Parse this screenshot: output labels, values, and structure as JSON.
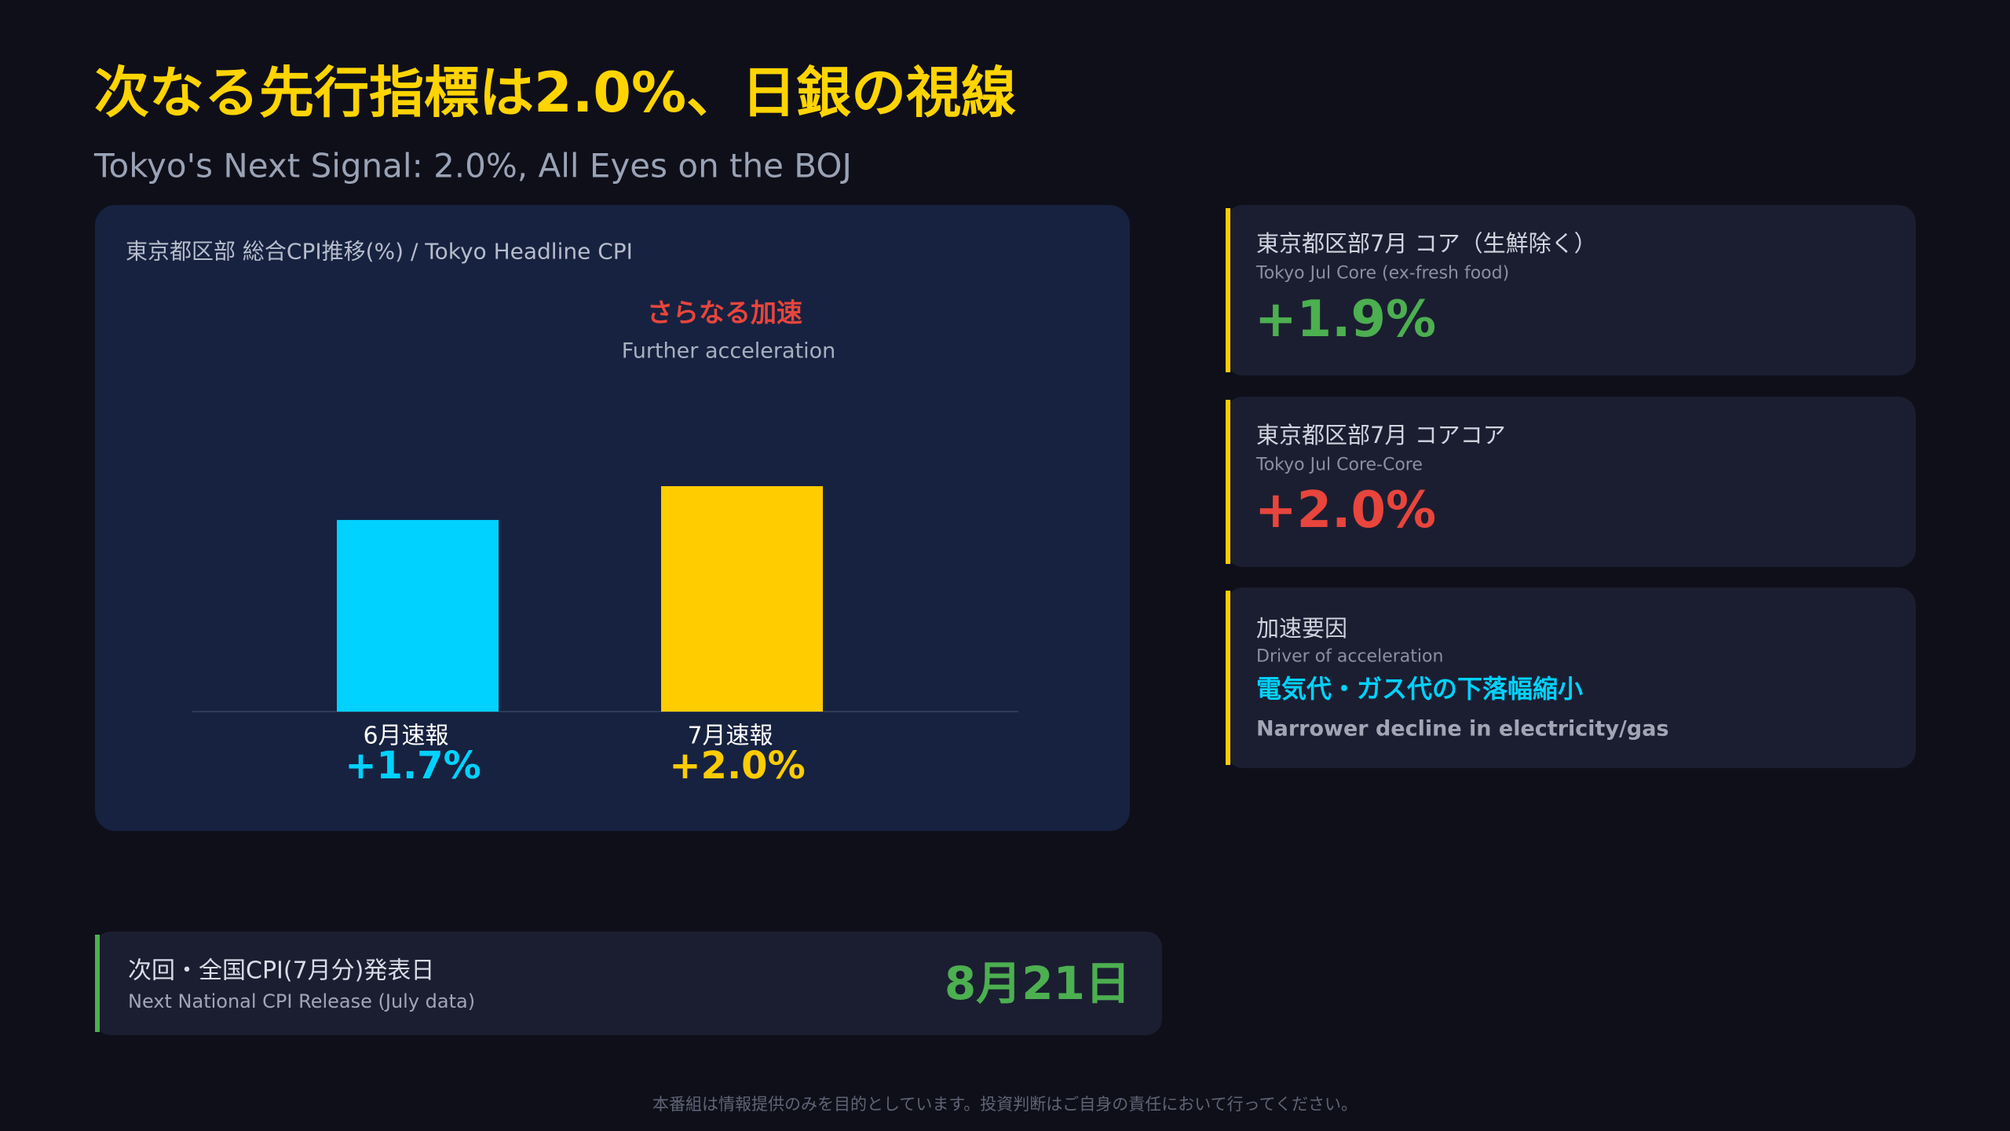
{
  "header": {
    "title": "次なる先行指標は2.0%、日銀の視線",
    "subtitle": "Tokyo's Next Signal: 2.0%, All Eyes on the BOJ"
  },
  "chart_data": {
    "type": "bar",
    "title": "東京都区部 総合CPI推移(%) / Tokyo Headline CPI",
    "annotation": {
      "text": "さらなる加速",
      "subtext": "Further acceleration"
    },
    "categories": [
      "6月速報",
      "7月速報"
    ],
    "values": [
      1.7,
      2.0
    ],
    "value_labels": [
      "+1.7%",
      "+2.0%"
    ],
    "colors": [
      "#00d2ff",
      "#ffcc00"
    ]
  },
  "cards": [
    {
      "label": "東京都区部7月 コア（生鮮除く）",
      "sublabel": "Tokyo Jul Core (ex-fresh food)",
      "value": "+1.9%"
    },
    {
      "label": "東京都区部7月 コアコア",
      "sublabel": "Tokyo Jul Core-Core",
      "value": "+2.0%"
    },
    {
      "label": "加速要因",
      "sublabel": "Driver of acceleration",
      "value": "電気代・ガス代の下落幅縮小",
      "note": "Narrower decline in electricity/gas"
    }
  ],
  "release": {
    "label": "次回・全国CPI(7月分)発表日",
    "sublabel": "Next National CPI Release (July data)",
    "date": "8月21日"
  },
  "footer": "本番組は情報提供のみを目的としています。投資判断はご自身の責任において行ってください。"
}
